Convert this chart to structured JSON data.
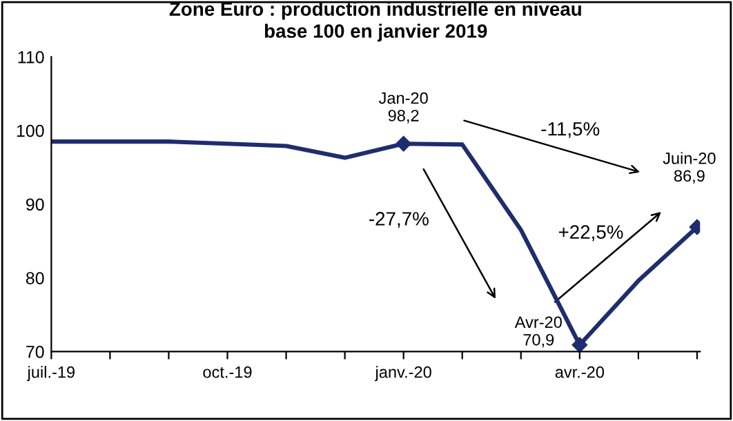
{
  "chart_data": {
    "type": "line",
    "title": "Zone Euro : production industrielle en niveau\nbase 100 en janvier 2019",
    "categories": [
      "juil.-19",
      null,
      null,
      "oct.-19",
      null,
      null,
      "janv.-20",
      null,
      null,
      "avr.-20",
      null,
      null
    ],
    "series": [
      {
        "color": "#1f2d6e",
        "values": [
          98.5,
          98.5,
          98.5,
          98.2,
          97.9,
          96.3,
          98.2,
          98.1,
          86.5,
          70.9,
          79.6,
          86.9
        ],
        "value_labels": [
          null,
          null,
          null,
          null,
          null,
          null,
          "Jan-20\n98,2",
          null,
          null,
          "Avr-20\n70,9",
          null,
          "Juin-20\n86,9"
        ]
      }
    ],
    "ylim": [
      70,
      110
    ],
    "yticks": [
      70,
      80,
      90,
      100,
      110
    ],
    "grid": false,
    "annotations": [
      "-11,5%",
      "-27,7%",
      "+22,5%"
    ]
  }
}
